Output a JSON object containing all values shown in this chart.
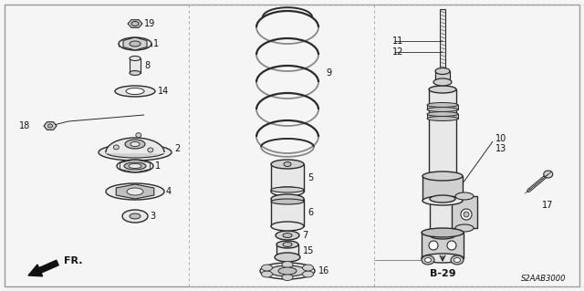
{
  "bg_color": "#f5f5f5",
  "line_color": "#2a2a2a",
  "part_fill": "#e8e8e8",
  "part_fill2": "#d0d0d0",
  "part_fill3": "#c0c0c0",
  "white": "#ffffff",
  "dark": "#111111",
  "label_color": "#111111",
  "diagram_code": "S2AAB3000",
  "ref_code": "B-29",
  "direction_label": "FR.",
  "border_color": "#888888",
  "divider_color": "#999999"
}
